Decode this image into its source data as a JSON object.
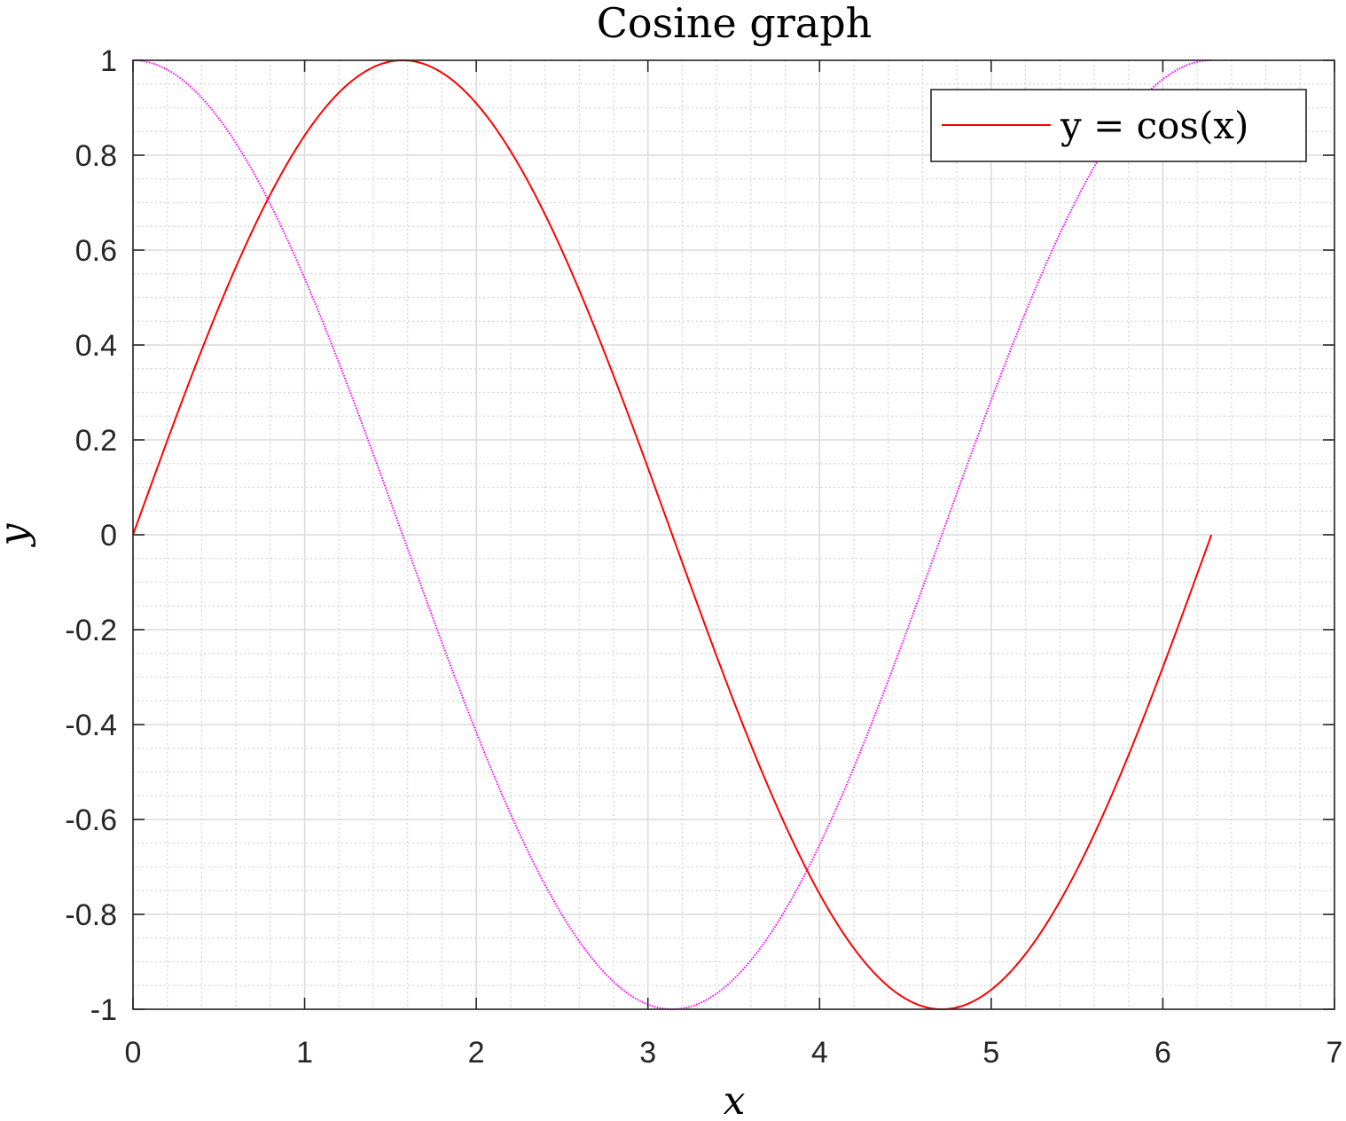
{
  "chart_data": {
    "type": "line",
    "title": "Cosine graph",
    "xlabel": "x",
    "ylabel": "y",
    "xlim": [
      0,
      7
    ],
    "ylim": [
      -1,
      1
    ],
    "x_ticks": [
      "0",
      "1",
      "2",
      "3",
      "4",
      "5",
      "6",
      "7"
    ],
    "y_ticks": [
      "-1",
      "-0.8",
      "-0.6",
      "-0.4",
      "-0.2",
      "0",
      "0.2",
      "0.4",
      "0.6",
      "0.8",
      "1"
    ],
    "grid": true,
    "minor_grid": true,
    "legend_position": "top-right",
    "legend_label": "y = cos(x)",
    "series": [
      {
        "style": "solid",
        "color": "#ff0000",
        "x_range": [
          0,
          6.2832
        ],
        "x": [
          0,
          0.7854,
          1.5708,
          2.3562,
          3.1416,
          3.927,
          4.7124,
          5.4978,
          6.2832
        ],
        "y": [
          0,
          0.7071,
          1,
          0.7071,
          0,
          -0.7071,
          -1,
          -0.7071,
          0
        ]
      },
      {
        "style": "dotted",
        "color": "#ff00ff",
        "x_range": [
          0,
          6.2832
        ],
        "x": [
          0,
          0.7854,
          1.5708,
          2.3562,
          3.1416,
          3.927,
          4.7124,
          5.4978,
          6.2832
        ],
        "y": [
          1,
          0.7071,
          0,
          -0.7071,
          -1,
          -0.7071,
          0,
          0.7071,
          1
        ]
      }
    ]
  }
}
